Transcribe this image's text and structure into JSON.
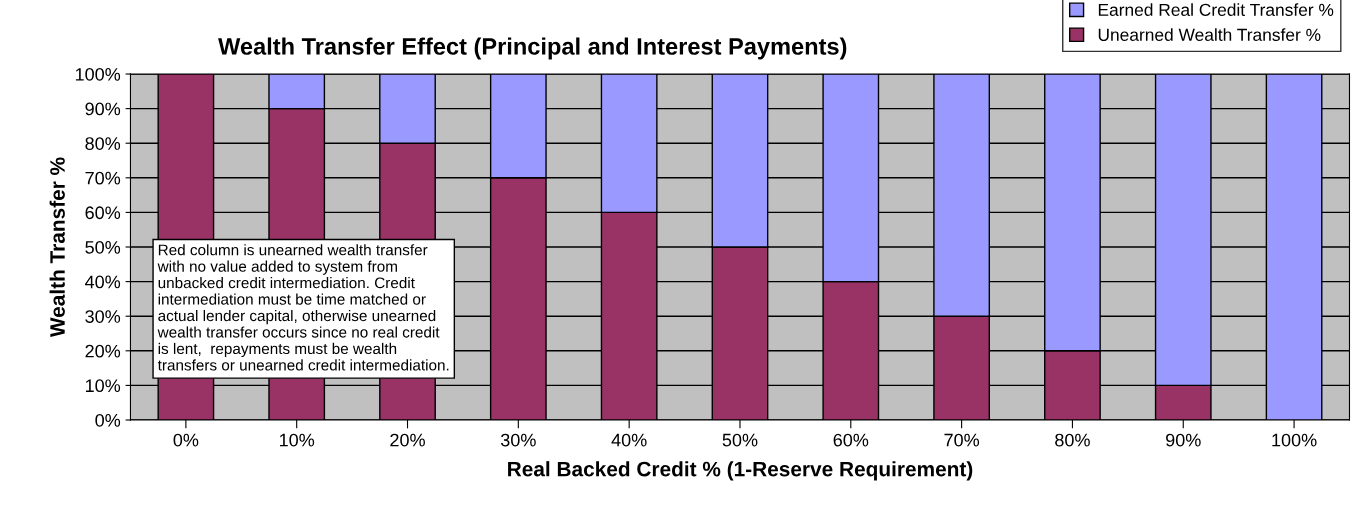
{
  "chart_data": {
    "type": "bar",
    "stacked": true,
    "title": "Wealth Transfer Effect (Principal and Interest Payments)",
    "xlabel": "Real Backed Credit % (1-Reserve Requirement)",
    "ylabel": "Wealth Transfer %",
    "categories": [
      "0%",
      "10%",
      "20%",
      "30%",
      "40%",
      "50%",
      "60%",
      "70%",
      "80%",
      "90%",
      "100%"
    ],
    "series": [
      {
        "name": "Unearned Wealth Transfer %",
        "color": "#993366",
        "values": [
          100,
          90,
          80,
          70,
          60,
          50,
          40,
          30,
          20,
          10,
          0
        ]
      },
      {
        "name": "Earned Real Credit Transfer %",
        "color": "#9999ff",
        "values": [
          0,
          10,
          20,
          30,
          40,
          50,
          60,
          70,
          80,
          90,
          100
        ]
      }
    ],
    "ylim": [
      0,
      100
    ],
    "yticks": [
      {
        "value": 0,
        "label": "0%"
      },
      {
        "value": 10,
        "label": "10%"
      },
      {
        "value": 20,
        "label": "20%"
      },
      {
        "value": 30,
        "label": "30%"
      },
      {
        "value": 40,
        "label": "40%"
      },
      {
        "value": 50,
        "label": "50%"
      },
      {
        "value": 60,
        "label": "60%"
      },
      {
        "value": 70,
        "label": "70%"
      },
      {
        "value": 80,
        "label": "80%"
      },
      {
        "value": 90,
        "label": "90%"
      },
      {
        "value": 100,
        "label": "100%"
      }
    ],
    "grid": "y",
    "legend": "top right",
    "annotations": [
      "Red column is unearned wealth transfer with no value added to system from unbacked credit intermediation. Credit intermediation must be time matched or actual lender capital, otherwise unearned wealth transfer occurs since no real credit is lent,  repayments must be wealth transfers or unearned credit intermediation."
    ]
  }
}
